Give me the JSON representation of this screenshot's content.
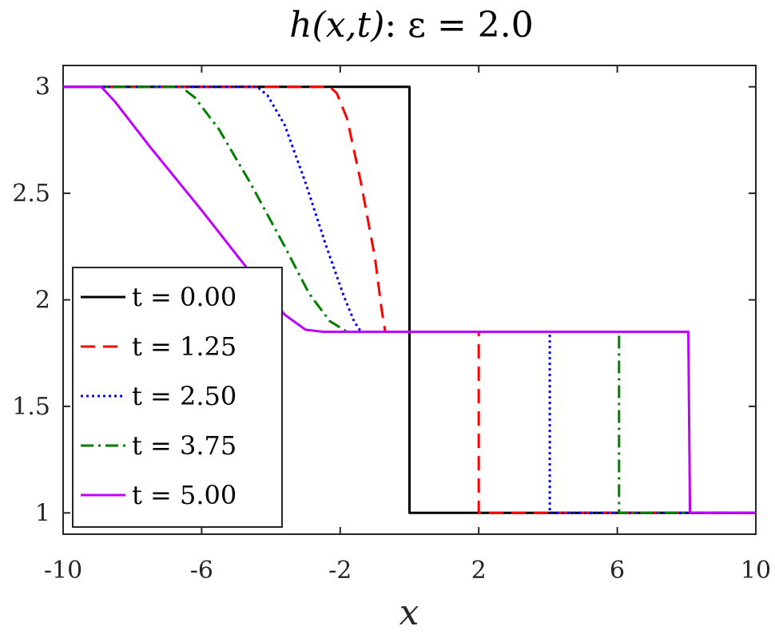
{
  "chart_data": {
    "type": "line",
    "title": {
      "prefix": "h(x,t)",
      "suffix": ":  ε = 2.0"
    },
    "xlabel": "x",
    "ylabel": "",
    "xlim": [
      -10,
      10
    ],
    "ylim": [
      0.9,
      3.1
    ],
    "xticks": [
      -10,
      -6,
      -2,
      2,
      6,
      10
    ],
    "xtick_labels": [
      "-10",
      "-6",
      "-2",
      "2",
      "6",
      "10"
    ],
    "yticks": [
      1,
      1.5,
      2,
      2.5,
      3
    ],
    "ytick_labels": [
      "1",
      "1.5",
      "2",
      "2.5",
      "3"
    ],
    "grid": false,
    "legend_position": "bottom-left",
    "series": [
      {
        "name": "t = 0.00",
        "color": "#000000",
        "dash": "solid",
        "x": [
          -10,
          0,
          0,
          10
        ],
        "y": [
          3,
          3,
          1,
          1
        ]
      },
      {
        "name": "t = 1.25",
        "color": "#ff0000",
        "dash": "dashed",
        "x": [
          -10,
          -2.3,
          -2.1,
          -1.8,
          -1.4,
          -1.0,
          -0.8,
          -0.7,
          2.0,
          2.0,
          10
        ],
        "y": [
          3,
          3,
          2.97,
          2.85,
          2.55,
          2.2,
          1.95,
          1.85,
          1.85,
          1,
          1
        ]
      },
      {
        "name": "t = 2.50",
        "color": "#0000ff",
        "dash": "dotted",
        "x": [
          -10,
          -4.4,
          -4.1,
          -3.6,
          -3.0,
          -2.4,
          -1.9,
          -1.6,
          -1.4,
          4.05,
          4.05,
          10
        ],
        "y": [
          3,
          3,
          2.96,
          2.82,
          2.55,
          2.25,
          2.02,
          1.9,
          1.85,
          1.85,
          1,
          1
        ]
      },
      {
        "name": "t = 3.75",
        "color": "#007f00",
        "dash": "dashdot",
        "x": [
          -10,
          -6.6,
          -6.2,
          -5.5,
          -4.6,
          -3.6,
          -2.9,
          -2.3,
          -1.8,
          6.05,
          6.05,
          10
        ],
        "y": [
          3,
          3,
          2.95,
          2.8,
          2.55,
          2.25,
          2.03,
          1.9,
          1.85,
          1.85,
          1,
          1
        ]
      },
      {
        "name": "t = 5.00",
        "color": "#bf00ff",
        "dash": "solid",
        "x": [
          -10,
          -8.9,
          -8.5,
          -7.5,
          -6.0,
          -4.6,
          -3.6,
          -3.0,
          -2.5,
          8.05,
          8.1,
          10
        ],
        "y": [
          3,
          3,
          2.93,
          2.72,
          2.42,
          2.13,
          1.93,
          1.86,
          1.85,
          1.85,
          1,
          1
        ]
      }
    ]
  }
}
